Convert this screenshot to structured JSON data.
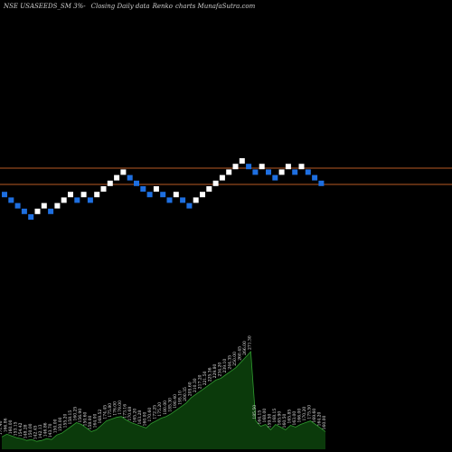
{
  "header": {
    "symbol": "NSE USASEEDS_SM 3%",
    "separator": "-",
    "description": "Closing Daily data",
    "chart_kind": "Renko",
    "suffix": "charts MunafaSutra.com"
  },
  "colors": {
    "background": "#000000",
    "up_brick": "#ffffff",
    "down_brick": "#1e6fe0",
    "resistance_line": "#b85a25",
    "volume_fill": "#0b3a0b",
    "volume_line": "#2f9a2f"
  },
  "chart_data": {
    "type": "renko",
    "bricks": [
      "down",
      "down",
      "down",
      "down",
      "down",
      "up",
      "up",
      "down",
      "up",
      "up",
      "up",
      "down",
      "up",
      "down",
      "up",
      "up",
      "up",
      "up",
      "up",
      "down",
      "down",
      "down",
      "down",
      "up",
      "down",
      "down",
      "up",
      "down",
      "down",
      "up",
      "up",
      "up",
      "up",
      "up",
      "up",
      "up",
      "up",
      "down",
      "down",
      "up",
      "down",
      "down",
      "up",
      "up",
      "down",
      "up",
      "down",
      "down",
      "down"
    ],
    "volume_labels": [
      "171.40",
      "166.86",
      "160.00",
      "153.15",
      "154.42",
      "148.28",
      "150.00",
      "142.45",
      "142.13",
      "146.86",
      "143.70",
      "150.00",
      "150.00",
      "155.20",
      "158.15",
      "160.25",
      "156.90",
      "150.60",
      "158.00",
      "164.00",
      "168.52",
      "174.45",
      "175.80",
      "176.00",
      "179.00",
      "173.16",
      "170.68",
      "165.20",
      "163.28",
      "160.00",
      "170.60",
      "172.25",
      "175.20",
      "180.00",
      "185.30",
      "190.40",
      "195.10",
      "200.35",
      "205.60",
      "210.30",
      "217.20",
      "221.50",
      "225.36",
      "229.80",
      "234.20",
      "239.10",
      "244.35",
      "250.00",
      "260.45",
      "266.00",
      "271.30",
      "185.50",
      "164.15",
      "168.00",
      "159.50",
      "168.15",
      "165.90",
      "160.50",
      "165.85",
      "163.00",
      "166.00",
      "170.20",
      "175.50",
      "169.60",
      "164.20",
      "160.00"
    ],
    "volume_values": [
      14,
      17,
      15,
      13,
      12,
      10,
      11,
      9,
      10,
      12,
      11,
      16,
      18,
      22,
      26,
      30,
      28,
      24,
      20,
      22,
      27,
      32,
      34,
      36,
      37,
      33,
      30,
      28,
      26,
      24,
      29,
      32,
      35,
      37,
      40,
      44,
      48,
      52,
      58,
      62,
      66,
      70,
      74,
      78,
      80,
      84,
      88,
      92,
      98,
      104,
      110,
      32,
      26,
      28,
      22,
      28,
      25,
      22,
      27,
      25,
      28,
      30,
      32,
      28,
      24,
      20
    ]
  }
}
